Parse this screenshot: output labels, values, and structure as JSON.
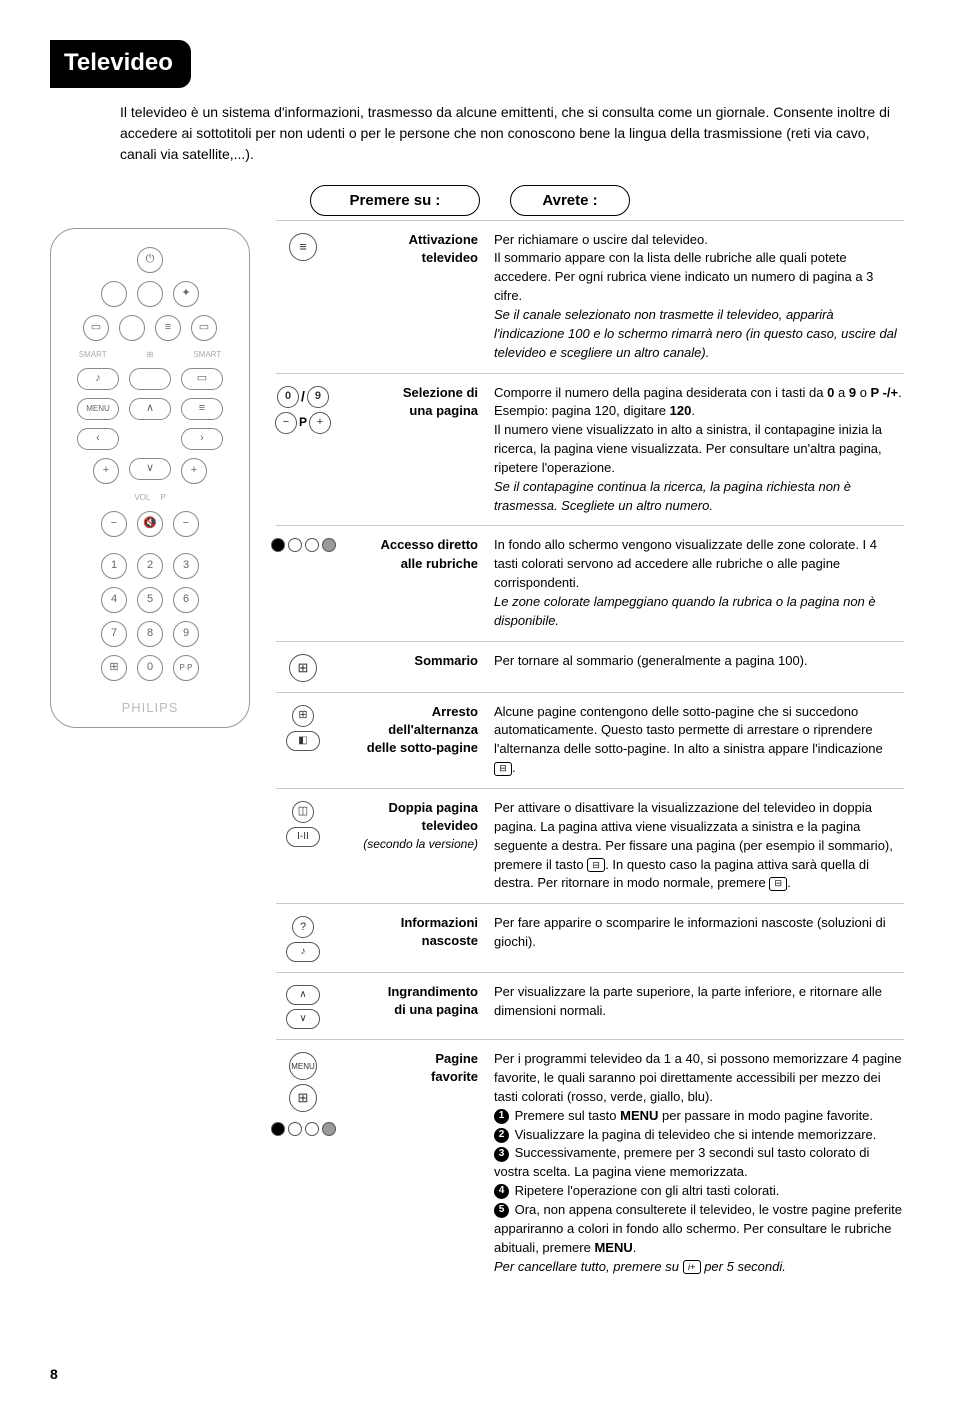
{
  "title": "Televideo",
  "intro": "Il televideo è un sistema d'informazioni, trasmesso da alcune emittenti, che si consulta come un giornale. Consente inoltre di accedere ai sottotitoli per non udenti o per le persone che non conoscono bene la lingua della trasmissione (reti via cavo, canali via satellite,...).",
  "headers": {
    "press": "Premere su :",
    "get": "Avrete :"
  },
  "rows": [
    {
      "label_html": "Attivazione<br>televideo",
      "desc_html": "Per richiamare o uscire dal televideo.<br>Il sommario appare con la lista delle rubriche alle quali potete accedere. Per ogni rubrica viene indicato un numero di pagina a 3 cifre.<br><span class='it'>Se il canale selezionato non trasmette il televideo, apparirà l'indicazione 100 e lo schermo rimarrà nero (in questo caso, uscire dal televideo e scegliere un altro canale).</span>"
    },
    {
      "label_html": "Selezione di<br>una pagina",
      "desc_html": "Comporre il numero della pagina desiderata con i tasti da <b>0</b> a <b>9</b> o <b>P -/+</b>. Esempio: pagina 120, digitare <b>120</b>.<br>Il numero viene visualizzato in alto a sinistra, il contapagine inizia la ricerca, la pagina viene visualizzata. Per consultare un'altra pagina, ripetere l'operazione.<br><span class='it'>Se il contapagine continua la ricerca, la pagina richiesta non è trasmessa. Scegliete un altro numero.</span>"
    },
    {
      "label_html": "Accesso diretto<br>alle rubriche",
      "desc_html": "In fondo allo schermo vengono visualizzate delle zone colorate. I 4 tasti colorati servono ad accedere alle rubriche o alle pagine corrispondenti.<br><span class='it'>Le zone colorate lampeggiano quando la rubrica o la pagina non è disponibile.</span>"
    },
    {
      "label_html": "Sommario",
      "desc_html": "Per tornare al sommario (generalmente a pagina 100)."
    },
    {
      "label_html": "Arresto<br>dell'alternanza<br>delle sotto-pagine",
      "desc_html": "Alcune pagine contengono delle sotto-pagine che si succedono automaticamente. Questo tasto permette di arrestare o riprendere l'alternanza delle sotto-pagine. In alto a sinistra appare l'indicazione <span class='keycap'>⊟</span>."
    },
    {
      "label_html": "Doppia pagina<br>televideo<br><span class='sub'>(secondo la versione)</span>",
      "desc_html": "Per attivare o disattivare la visualizzazione del televideo in doppia pagina. La pagina attiva viene visualizzata a sinistra e la pagina seguente a destra. Per fissare una pagina (per esempio il sommario), premere il tasto <span class='keycap'>⊟</span>. In questo caso la pagina attiva sarà quella di destra. Per ritornare in modo normale, premere <span class='keycap'>⊟</span>."
    },
    {
      "label_html": "Informazioni<br>nascoste",
      "desc_html": "Per fare apparire o scomparire le informazioni nascoste (soluzioni di giochi)."
    },
    {
      "label_html": "Ingrandimento<br>di una pagina",
      "desc_html": "Per visualizzare la parte superiore, la parte inferiore, e ritornare alle dimensioni normali."
    },
    {
      "label_html": "Pagine<br>favorite",
      "desc_html": "Per i programmi televideo da 1 a 40, si possono memorizzare 4 pagine favorite, le quali saranno poi direttamente accessibili per mezzo dei tasti colorati (rosso, verde, giallo, blu).<br><span class='circ-num'>1</span> Premere sul tasto <b>MENU</b> per passare in modo pagine favorite.<br><span class='circ-num'>2</span> Visualizzare la pagina di televideo che si intende memorizzare.<br><span class='circ-num'>3</span> Successivamente, premere per 3 secondi sul tasto colorato di vostra scelta. La pagina viene memorizzata.<br><span class='circ-num'>4</span> Ripetere l'operazione con gli altri tasti colorati.<br><span class='circ-num'>5</span> Ora, non appena consulterete il televideo, le vostre pagine preferite appariranno a colori in fondo allo schermo. Per consultare le rubriche abituali, premere <b>MENU</b>.<br><span class='it'>Per cancellare tutto, premere su <span class='keycap'>i+</span> per 5 secondi.</span>"
    }
  ],
  "page_number": "8",
  "remote_brand": "PHILIPS"
}
